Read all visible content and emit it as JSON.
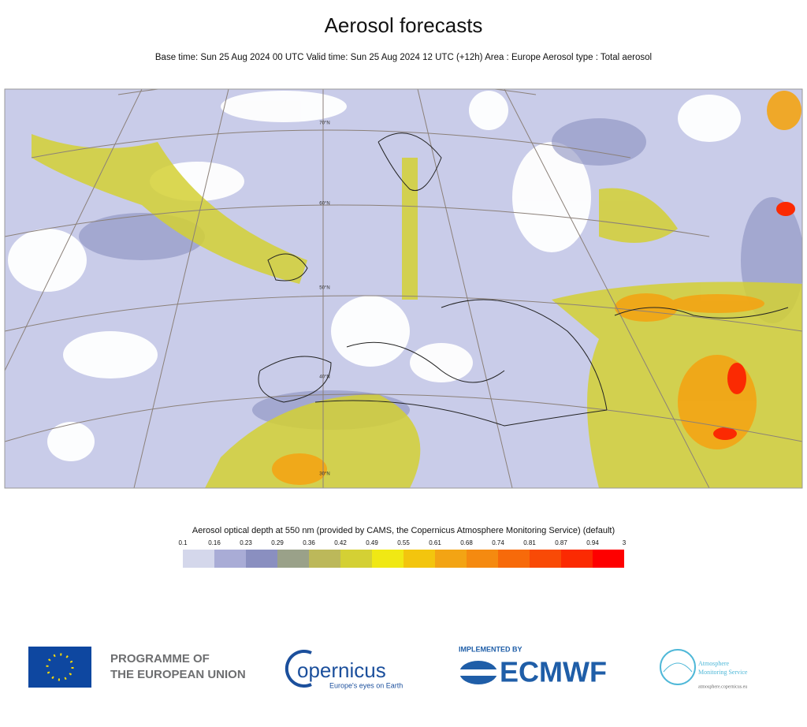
{
  "header": {
    "title": "Aerosol forecasts",
    "subtitle": "Base time: Sun 25 Aug 2024 00 UTC Valid time: Sun 25 Aug 2024 12 UTC (+12h) Area : Europe Aerosol type : Total aerosol"
  },
  "map": {
    "latitude_labels": [
      "70°N",
      "60°N",
      "50°N",
      "40°N",
      "30°N"
    ]
  },
  "legend": {
    "label": "Aerosol optical depth at 550 nm (provided by CAMS, the Copernicus Atmosphere Monitoring Service) (default)",
    "ticks": [
      0.1,
      0.16,
      0.23,
      0.29,
      0.36,
      0.42,
      0.49,
      0.55,
      0.61,
      0.68,
      0.74,
      0.81,
      0.87,
      0.94,
      3
    ],
    "colors": [
      "#d4d7eb",
      "#a9acd6",
      "#8a8fc0",
      "#9aa189",
      "#bcb85a",
      "#d4d034",
      "#f0e814",
      "#f3c50e",
      "#f3a414",
      "#f58a10",
      "#f76a0a",
      "#f94a06",
      "#fb2a02",
      "#fe0000"
    ]
  },
  "footer": {
    "eu_line1": "PROGRAMME OF",
    "eu_line2": "THE EUROPEAN UNION",
    "copernicus": "opernicus",
    "copernicus_tagline": "Europe's eyes on Earth",
    "implemented_by": "IMPLEMENTED BY",
    "ecmwf": "ECMWF",
    "cams_line1": "Atmosphere",
    "cams_line2": "Monitoring Service",
    "cams_url": "atmosphere.copernicus.eu"
  }
}
